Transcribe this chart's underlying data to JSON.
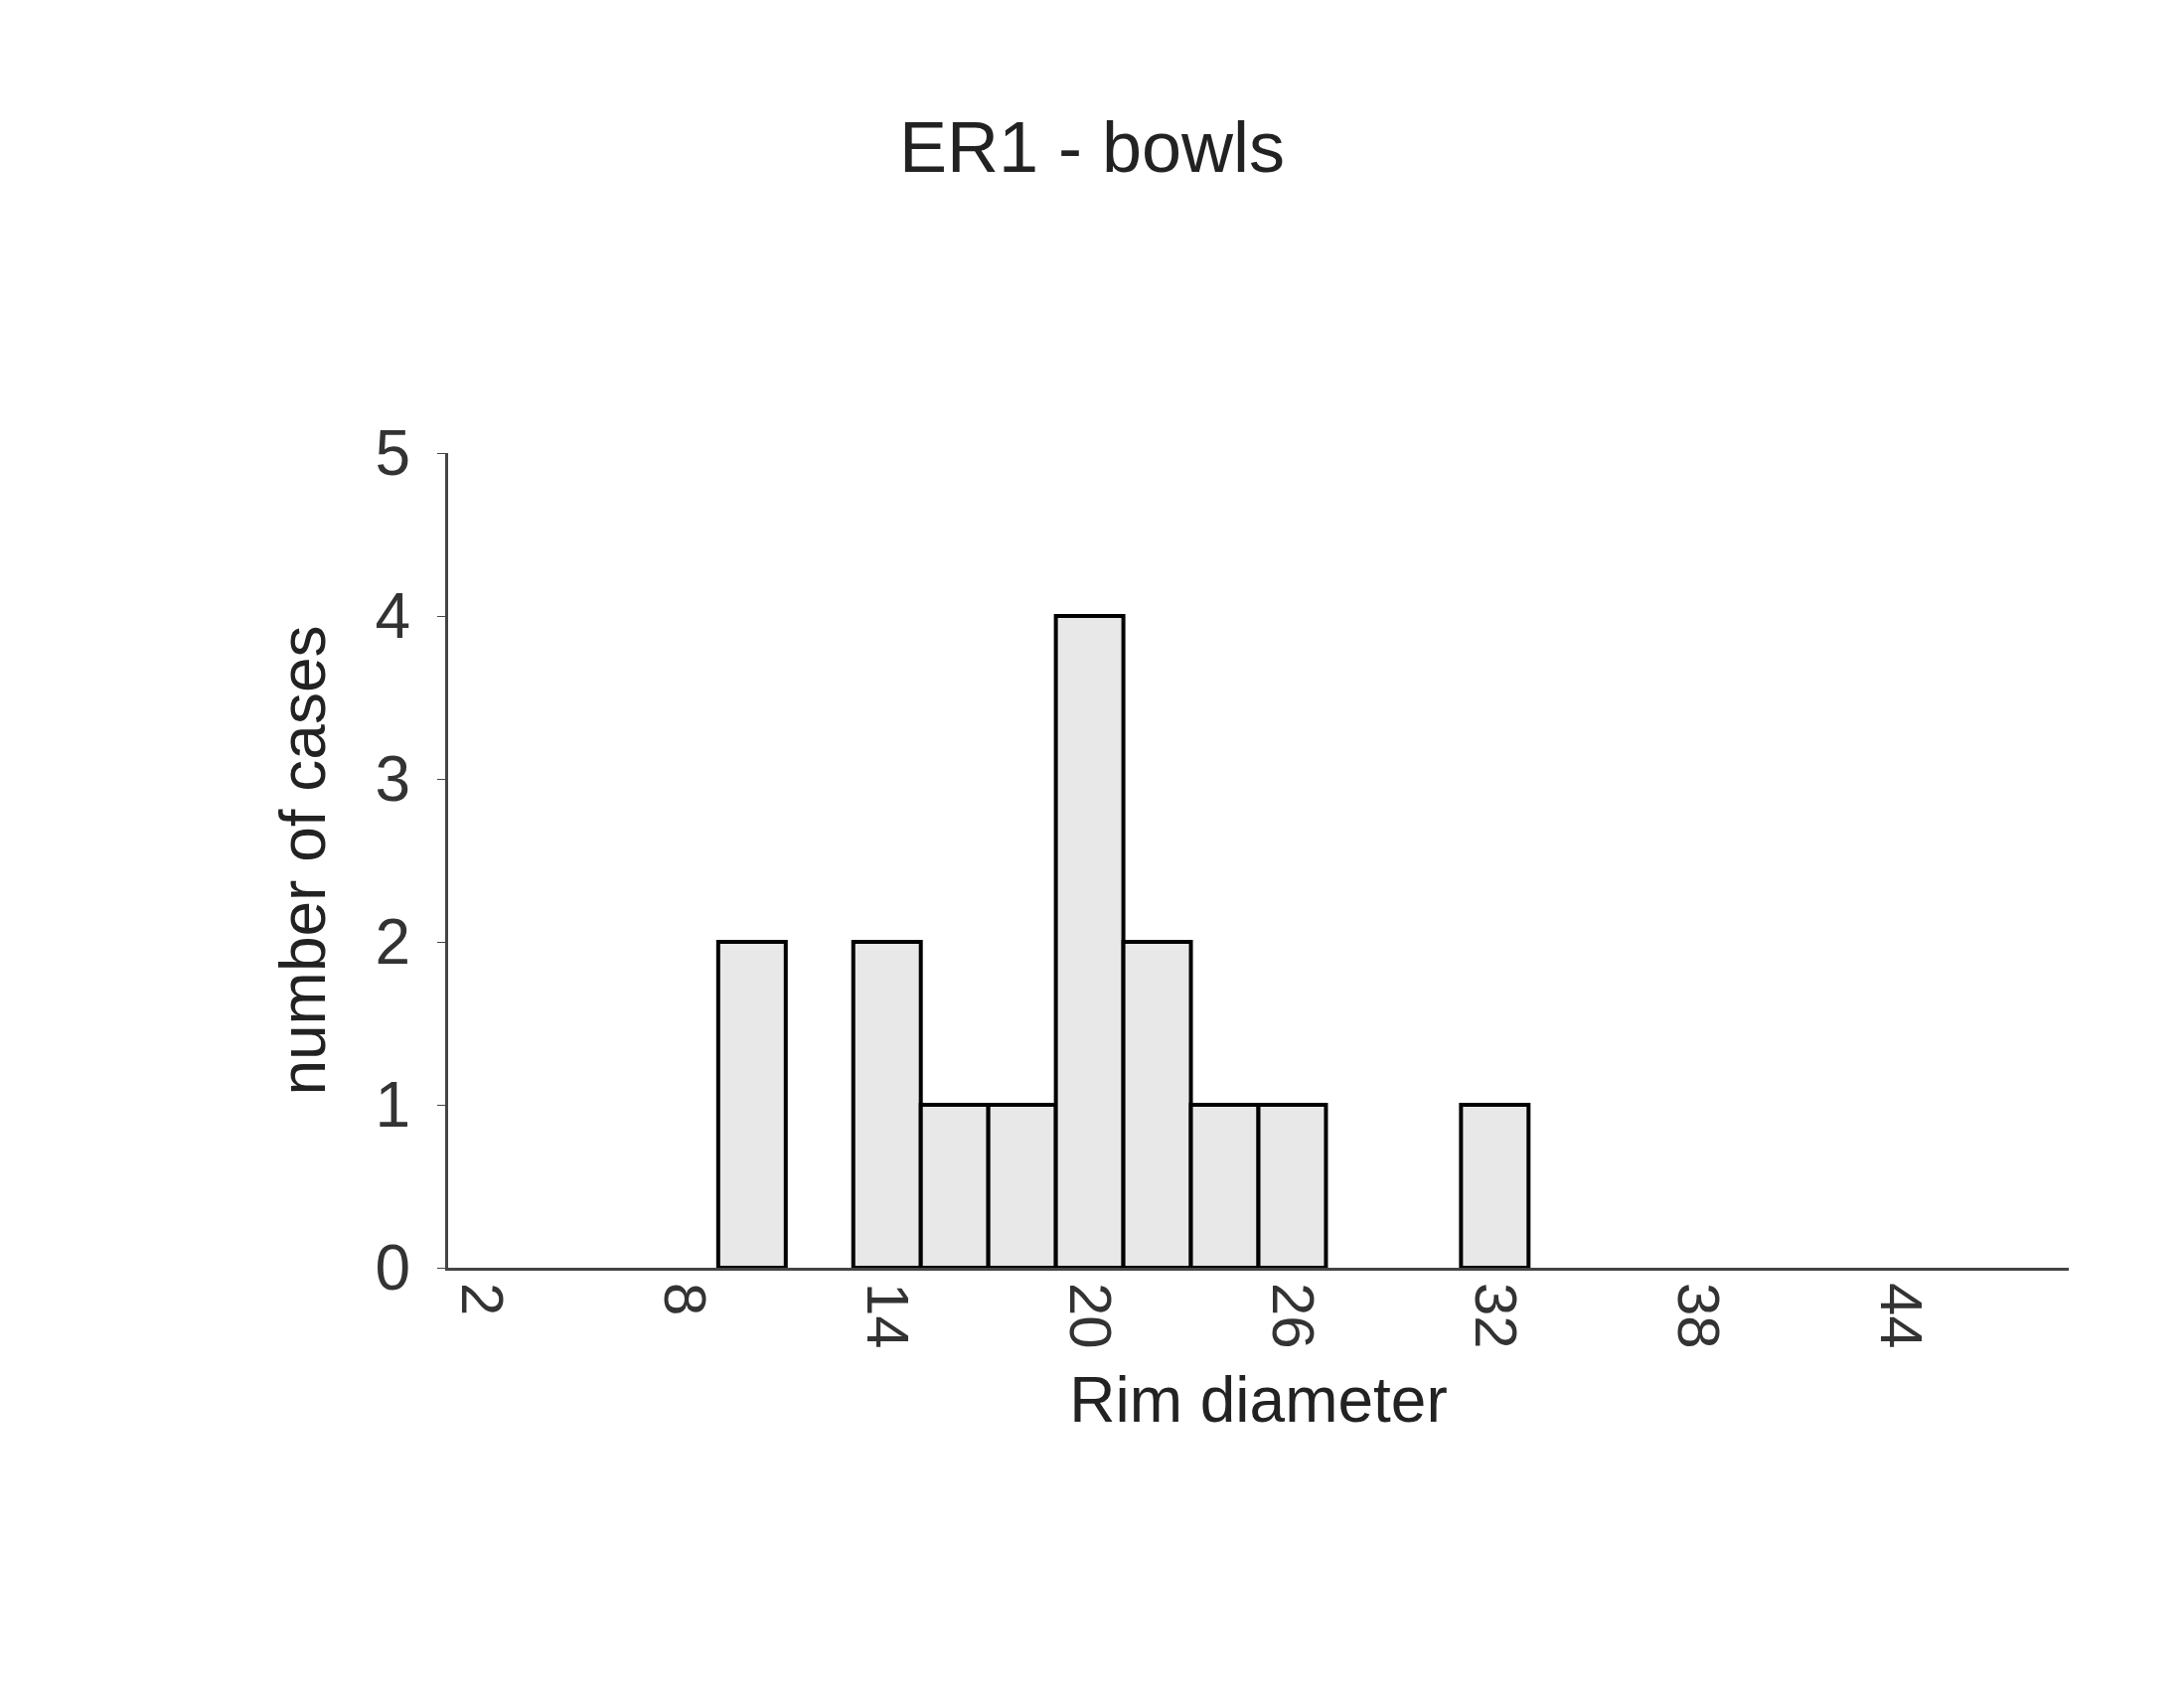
{
  "chart_data": {
    "type": "histogram",
    "title": "ER1 - bowls",
    "xlabel": "Rim diameter",
    "ylabel": "number of cases",
    "bins": [
      1,
      3,
      5,
      7,
      9,
      11,
      13,
      15,
      17,
      19,
      21,
      23,
      25,
      27,
      29,
      31,
      33,
      35,
      37,
      39,
      41,
      43,
      45,
      47,
      49
    ],
    "values": [
      0,
      0,
      0,
      0,
      2,
      0,
      2,
      1,
      1,
      4,
      2,
      1,
      1,
      0,
      0,
      1,
      0,
      0,
      0,
      0,
      0,
      0,
      0,
      0
    ],
    "color": "#e8e8e8",
    "xlim": [
      1,
      49
    ],
    "xticks": [
      2,
      8,
      14,
      20,
      26,
      32,
      38,
      44
    ],
    "ylim": [
      0,
      5
    ],
    "yticks": [
      0,
      1,
      2,
      3,
      4,
      5
    ],
    "grid": false
  }
}
